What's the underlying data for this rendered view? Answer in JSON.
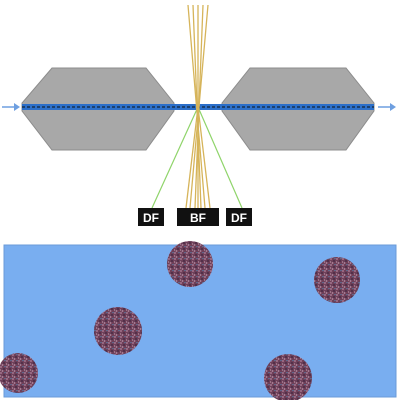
{
  "labels": {
    "left": "DF",
    "center": "BF",
    "right": "DF"
  },
  "colors": {
    "background": "#ffffff",
    "pole": "#a8a8a8",
    "pole_edge": "#8c8c8c",
    "beam": "#2c6fc9",
    "beam_core": "#18324f",
    "arrow": "#6e9fe0",
    "bf_rays": "#d6b45a",
    "df_rays": "#8fd46a",
    "label_box": "#111111",
    "label_text": "#ffffff",
    "panel_bg": "#79aef0",
    "particle": "#7a4a62"
  },
  "icons": {
    "left_arrow": "arrow-right-icon",
    "right_arrow": "arrow-right-icon"
  }
}
